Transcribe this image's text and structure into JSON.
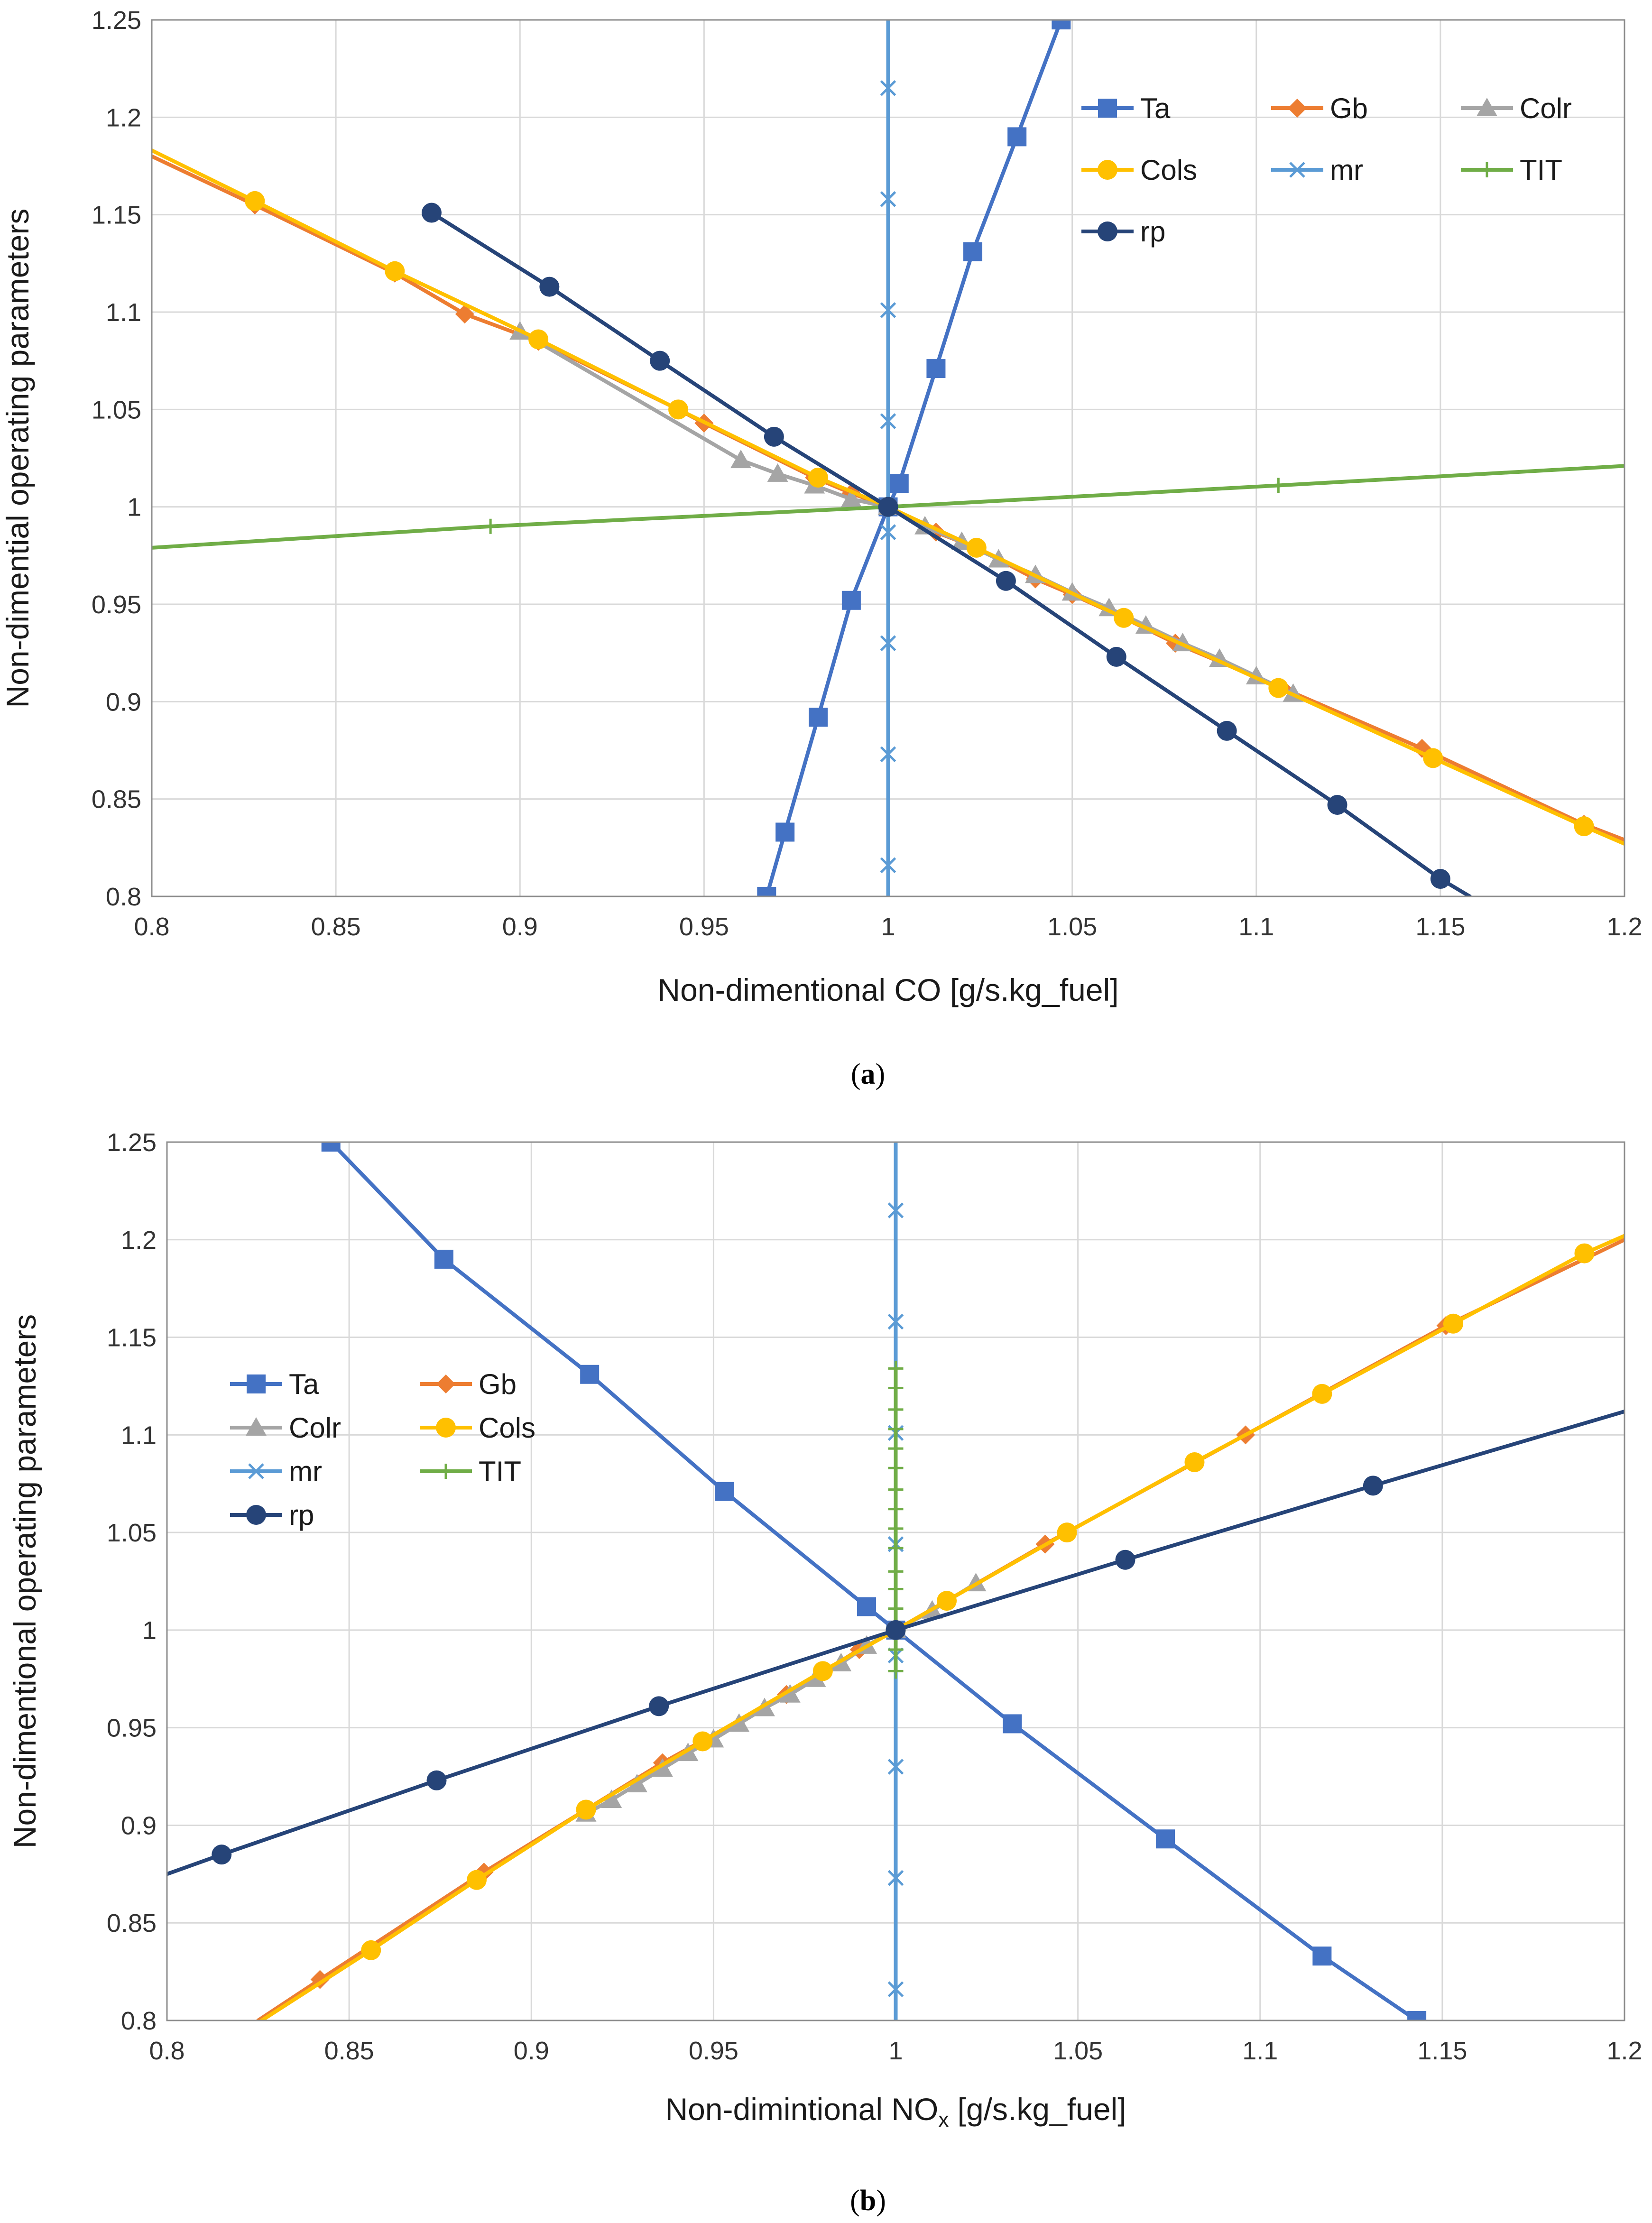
{
  "chart_data": [
    {
      "type": "line",
      "panel_label": "a",
      "xlabel": "Non-dimentional CO [g/s.kg_fuel]",
      "ylabel": "Non-dimential operating parameters",
      "xlim": [
        0.8,
        1.2
      ],
      "ylim": [
        0.8,
        1.25
      ],
      "x_ticks": [
        "0.8",
        "0.85",
        "0.9",
        "0.95",
        "1",
        "1.05",
        "1.1",
        "1.15",
        "1.2"
      ],
      "y_ticks": [
        "0.8",
        "0.85",
        "0.9",
        "0.95",
        "1",
        "1.05",
        "1.1",
        "1.15",
        "1.2",
        "1.25"
      ],
      "grid": true,
      "legend_position": "top-right",
      "series": [
        {
          "name": "Ta",
          "color": "#4472C4",
          "marker": "square",
          "points": [
            [
              0.967,
              0.8
            ],
            [
              0.972,
              0.833
            ],
            [
              0.981,
              0.892
            ],
            [
              0.99,
              0.952
            ],
            [
              1.0,
              1.0
            ],
            [
              1.003,
              1.012
            ],
            [
              1.013,
              1.071
            ],
            [
              1.023,
              1.131
            ],
            [
              1.035,
              1.19
            ],
            [
              1.047,
              1.25
            ]
          ]
        },
        {
          "name": "Gb",
          "color": "#ED7D31",
          "marker": "diamond",
          "points": [
            [
              0.8,
              1.18
            ],
            [
              0.828,
              1.155
            ],
            [
              0.866,
              1.12
            ],
            [
              0.885,
              1.099
            ],
            [
              0.905,
              1.085
            ],
            [
              0.943,
              1.05
            ],
            [
              0.95,
              1.043
            ],
            [
              0.98,
              1.015
            ],
            [
              0.99,
              1.007
            ],
            [
              1.0,
              1.0
            ],
            [
              1.013,
              0.987
            ],
            [
              1.024,
              0.979
            ],
            [
              1.04,
              0.963
            ],
            [
              1.05,
              0.955
            ],
            [
              1.064,
              0.943
            ],
            [
              1.078,
              0.93
            ],
            [
              1.107,
              0.907
            ],
            [
              1.145,
              0.876
            ],
            [
              1.189,
              0.837
            ],
            [
              1.2,
              0.829
            ]
          ]
        },
        {
          "name": "Colr",
          "color": "#A5A5A5",
          "marker": "triangle",
          "points": [
            [
              0.9,
              1.09
            ],
            [
              0.96,
              1.024
            ],
            [
              0.97,
              1.017
            ],
            [
              0.98,
              1.011
            ],
            [
              0.99,
              1.004
            ],
            [
              1.0,
              1.0
            ],
            [
              1.01,
              0.99
            ],
            [
              1.02,
              0.982
            ],
            [
              1.03,
              0.973
            ],
            [
              1.04,
              0.965
            ],
            [
              1.05,
              0.956
            ],
            [
              1.06,
              0.948
            ],
            [
              1.07,
              0.939
            ],
            [
              1.08,
              0.93
            ],
            [
              1.09,
              0.922
            ],
            [
              1.1,
              0.913
            ],
            [
              1.11,
              0.904
            ]
          ]
        },
        {
          "name": "Cols",
          "color": "#FFC000",
          "marker": "circle",
          "points": [
            [
              0.8,
              1.183
            ],
            [
              0.828,
              1.157
            ],
            [
              0.866,
              1.121
            ],
            [
              0.905,
              1.086
            ],
            [
              0.943,
              1.05
            ],
            [
              0.981,
              1.015
            ],
            [
              1.0,
              1.0
            ],
            [
              1.024,
              0.979
            ],
            [
              1.064,
              0.943
            ],
            [
              1.106,
              0.907
            ],
            [
              1.148,
              0.871
            ],
            [
              1.189,
              0.836
            ],
            [
              1.2,
              0.827
            ]
          ]
        },
        {
          "name": "mr",
          "color": "#5B9BD5",
          "marker": "x",
          "points": [
            [
              1.0,
              0.8
            ],
            [
              1.0,
              0.816
            ],
            [
              1.0,
              0.873
            ],
            [
              1.0,
              0.93
            ],
            [
              1.0,
              0.987
            ],
            [
              1.0,
              1.044
            ],
            [
              1.0,
              1.101
            ],
            [
              1.0,
              1.158
            ],
            [
              1.0,
              1.215
            ],
            [
              1.0,
              1.25
            ]
          ]
        },
        {
          "name": "TIT",
          "color": "#70AD47",
          "marker": "plus",
          "points": [
            [
              0.8,
              0.979
            ],
            [
              0.892,
              0.99
            ],
            [
              1.0,
              1.0
            ],
            [
              1.106,
              1.011
            ],
            [
              1.2,
              1.021
            ]
          ]
        },
        {
          "name": "rp",
          "color": "#264478",
          "marker": "circle",
          "points": [
            [
              0.876,
              1.151
            ],
            [
              0.908,
              1.113
            ],
            [
              0.938,
              1.075
            ],
            [
              0.969,
              1.036
            ],
            [
              1.0,
              1.0
            ],
            [
              1.032,
              0.962
            ],
            [
              1.062,
              0.923
            ],
            [
              1.092,
              0.885
            ],
            [
              1.122,
              0.847
            ],
            [
              1.15,
              0.809
            ],
            [
              1.158,
              0.8
            ]
          ]
        }
      ]
    },
    {
      "type": "line",
      "panel_label": "b",
      "xlabel_main": "Non-dimintional NO",
      "xlabel_sub": "x",
      "xlabel_tail": " [g/s.kg_fuel]",
      "ylabel": "Non-dimentional operating parameters",
      "xlim": [
        0.8,
        1.2
      ],
      "ylim": [
        0.8,
        1.25
      ],
      "x_ticks": [
        "0.8",
        "0.85",
        "0.9",
        "0.95",
        "1",
        "1.05",
        "1.1",
        "1.15",
        "1.2"
      ],
      "y_ticks": [
        "0.8",
        "0.85",
        "0.9",
        "0.95",
        "1",
        "1.05",
        "1.1",
        "1.15",
        "1.2",
        "1.25"
      ],
      "grid": true,
      "legend_position": "top-left",
      "series": [
        {
          "name": "Ta",
          "color": "#4472C4",
          "marker": "square",
          "points": [
            [
              0.845,
              1.25
            ],
            [
              0.876,
              1.19
            ],
            [
              0.916,
              1.131
            ],
            [
              0.953,
              1.071
            ],
            [
              0.992,
              1.012
            ],
            [
              1.0,
              1.0
            ],
            [
              1.032,
              0.952
            ],
            [
              1.074,
              0.893
            ],
            [
              1.117,
              0.833
            ],
            [
              1.143,
              0.8
            ]
          ]
        },
        {
          "name": "Gb",
          "color": "#ED7D31",
          "marker": "diamond",
          "points": [
            [
              0.825,
              0.8
            ],
            [
              0.842,
              0.821
            ],
            [
              0.887,
              0.876
            ],
            [
              0.936,
              0.932
            ],
            [
              0.97,
              0.967
            ],
            [
              0.99,
              0.99
            ],
            [
              1.0,
              1.0
            ],
            [
              1.041,
              1.044
            ],
            [
              1.096,
              1.1
            ],
            [
              1.151,
              1.156
            ],
            [
              1.2,
              1.2
            ]
          ]
        },
        {
          "name": "Colr",
          "color": "#A5A5A5",
          "marker": "triangle",
          "points": [
            [
              0.915,
              0.906
            ],
            [
              0.922,
              0.913
            ],
            [
              0.929,
              0.921
            ],
            [
              0.936,
              0.929
            ],
            [
              0.943,
              0.937
            ],
            [
              0.95,
              0.944
            ],
            [
              0.957,
              0.952
            ],
            [
              0.964,
              0.96
            ],
            [
              0.971,
              0.967
            ],
            [
              0.978,
              0.975
            ],
            [
              0.985,
              0.983
            ],
            [
              0.992,
              0.992
            ],
            [
              1.0,
              1.0
            ],
            [
              1.01,
              1.01
            ],
            [
              1.022,
              1.024
            ]
          ]
        },
        {
          "name": "Cols",
          "color": "#FFC000",
          "marker": "circle",
          "points": [
            [
              0.826,
              0.8
            ],
            [
              0.856,
              0.836
            ],
            [
              0.885,
              0.872
            ],
            [
              0.915,
              0.908
            ],
            [
              0.947,
              0.943
            ],
            [
              0.98,
              0.979
            ],
            [
              1.0,
              1.0
            ],
            [
              1.014,
              1.015
            ],
            [
              1.047,
              1.05
            ],
            [
              1.082,
              1.086
            ],
            [
              1.117,
              1.121
            ],
            [
              1.153,
              1.157
            ],
            [
              1.189,
              1.193
            ],
            [
              1.2,
              1.202
            ]
          ]
        },
        {
          "name": "mr",
          "color": "#5B9BD5",
          "marker": "x",
          "points": [
            [
              1.0,
              0.8
            ],
            [
              1.0,
              0.816
            ],
            [
              1.0,
              0.873
            ],
            [
              1.0,
              0.93
            ],
            [
              1.0,
              0.987
            ],
            [
              1.0,
              1.044
            ],
            [
              1.0,
              1.101
            ],
            [
              1.0,
              1.158
            ],
            [
              1.0,
              1.215
            ],
            [
              1.0,
              1.25
            ]
          ]
        },
        {
          "name": "TIT",
          "color": "#70AD47",
          "marker": "plus",
          "points": [
            [
              1.0,
              0.979
            ],
            [
              1.0,
              0.99
            ],
            [
              1.0,
              1.0
            ],
            [
              1.0,
              1.011
            ],
            [
              1.0,
              1.021
            ],
            [
              1.0,
              1.03
            ],
            [
              1.0,
              1.042
            ],
            [
              1.0,
              1.052
            ],
            [
              1.0,
              1.062
            ],
            [
              1.0,
              1.072
            ],
            [
              1.0,
              1.083
            ],
            [
              1.0,
              1.093
            ],
            [
              1.0,
              1.103
            ],
            [
              1.0,
              1.113
            ],
            [
              1.0,
              1.124
            ],
            [
              1.0,
              1.134
            ]
          ]
        },
        {
          "name": "rp",
          "color": "#264478",
          "marker": "circle",
          "points": [
            [
              0.8,
              0.875
            ],
            [
              0.815,
              0.885
            ],
            [
              0.874,
              0.923
            ],
            [
              0.935,
              0.961
            ],
            [
              1.0,
              1.0
            ],
            [
              1.063,
              1.036
            ],
            [
              1.131,
              1.074
            ],
            [
              1.2,
              1.112
            ]
          ]
        }
      ]
    }
  ]
}
